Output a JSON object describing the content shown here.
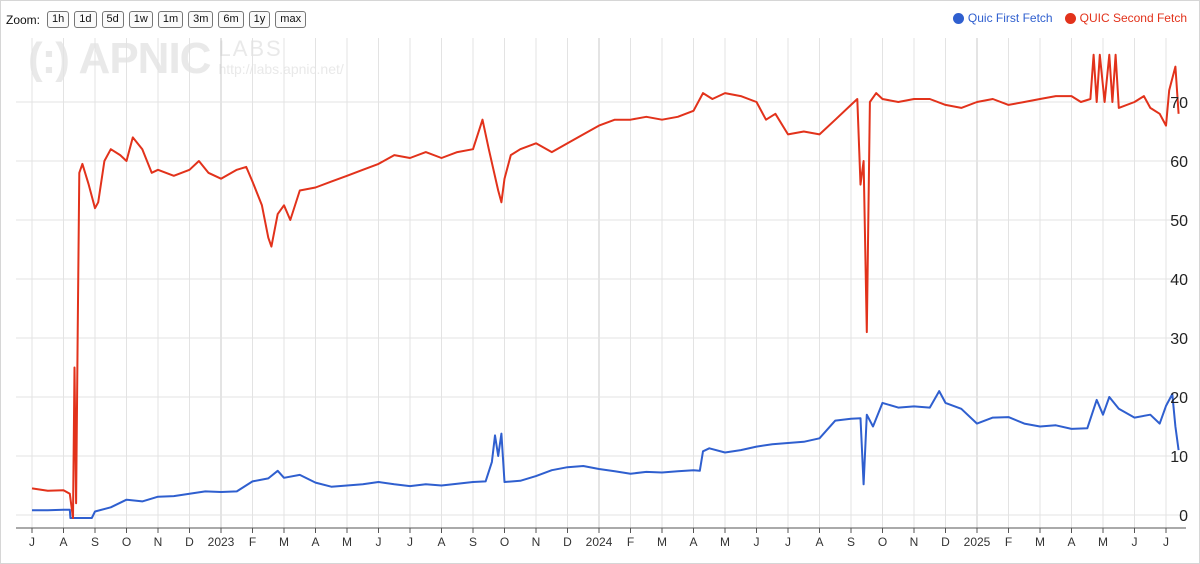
{
  "zoom": {
    "label": "Zoom:",
    "buttons": [
      "1h",
      "1d",
      "5d",
      "1w",
      "1m",
      "3m",
      "6m",
      "1y",
      "max"
    ]
  },
  "watermark": {
    "logo": "(:) APNIC",
    "labs": "LABS",
    "url": "http://labs.apnic.net/"
  },
  "colors": {
    "first": "#2f5fcf",
    "second": "#e2321b",
    "grid": "#e3e3e3",
    "axis": "#555555"
  },
  "chart_data": {
    "type": "line",
    "title": "",
    "xlabel": "",
    "ylabel": "",
    "x_ticks": [
      "J",
      "A",
      "S",
      "O",
      "N",
      "D",
      "2023",
      "F",
      "M",
      "A",
      "M",
      "J",
      "J",
      "A",
      "S",
      "O",
      "N",
      "D",
      "2024",
      "F",
      "M",
      "A",
      "M",
      "J",
      "J",
      "A",
      "S",
      "O",
      "N",
      "D",
      "2025",
      "F",
      "M",
      "A",
      "M",
      "J",
      "J"
    ],
    "y_ticks": [
      0,
      10,
      20,
      30,
      40,
      50,
      60,
      70
    ],
    "ylim": [
      -1,
      78
    ],
    "xlim": [
      0,
      36.6
    ],
    "legend_position": "top-right",
    "grid": true,
    "series": [
      {
        "name": "Quic First Fetch",
        "color": "#2f5fcf",
        "points": [
          [
            0,
            0.8
          ],
          [
            0.5,
            0.8
          ],
          [
            1,
            0.9
          ],
          [
            1.2,
            0.9
          ],
          [
            1.22,
            -0.5
          ],
          [
            1.9,
            -0.5
          ],
          [
            2,
            0.6
          ],
          [
            2.5,
            1.3
          ],
          [
            3,
            2.6
          ],
          [
            3.5,
            2.3
          ],
          [
            4,
            3.1
          ],
          [
            4.5,
            3.2
          ],
          [
            5,
            3.6
          ],
          [
            5.5,
            4.0
          ],
          [
            6,
            3.9
          ],
          [
            6.5,
            4.0
          ],
          [
            7,
            5.7
          ],
          [
            7.5,
            6.2
          ],
          [
            7.8,
            7.5
          ],
          [
            8,
            6.3
          ],
          [
            8.5,
            6.8
          ],
          [
            9,
            5.5
          ],
          [
            9.5,
            4.8
          ],
          [
            10,
            5.0
          ],
          [
            10.5,
            5.2
          ],
          [
            11,
            5.6
          ],
          [
            11.5,
            5.2
          ],
          [
            12,
            4.9
          ],
          [
            12.5,
            5.2
          ],
          [
            13,
            5.0
          ],
          [
            13.5,
            5.3
          ],
          [
            14,
            5.6
          ],
          [
            14.4,
            5.7
          ],
          [
            14.6,
            9
          ],
          [
            14.7,
            13.5
          ],
          [
            14.8,
            10
          ],
          [
            14.9,
            13.8
          ],
          [
            15,
            5.6
          ],
          [
            15.5,
            5.8
          ],
          [
            16,
            6.6
          ],
          [
            16.5,
            7.6
          ],
          [
            17,
            8.1
          ],
          [
            17.5,
            8.3
          ],
          [
            18,
            7.8
          ],
          [
            18.5,
            7.4
          ],
          [
            19,
            7.0
          ],
          [
            19.5,
            7.3
          ],
          [
            20,
            7.2
          ],
          [
            20.5,
            7.4
          ],
          [
            21,
            7.6
          ],
          [
            21.2,
            7.5
          ],
          [
            21.3,
            10.8
          ],
          [
            21.5,
            11.3
          ],
          [
            22,
            10.6
          ],
          [
            22.5,
            11.0
          ],
          [
            23,
            11.6
          ],
          [
            23.5,
            12.0
          ],
          [
            24,
            12.2
          ],
          [
            24.5,
            12.4
          ],
          [
            25,
            13.0
          ],
          [
            25.5,
            16.0
          ],
          [
            26,
            16.3
          ],
          [
            26.3,
            16.4
          ],
          [
            26.4,
            5.2
          ],
          [
            26.5,
            17.0
          ],
          [
            26.7,
            15.0
          ],
          [
            27,
            19.0
          ],
          [
            27.5,
            18.2
          ],
          [
            28,
            18.4
          ],
          [
            28.5,
            18.2
          ],
          [
            28.8,
            21.0
          ],
          [
            29,
            19.0
          ],
          [
            29.5,
            18.0
          ],
          [
            30,
            15.5
          ],
          [
            30.5,
            16.5
          ],
          [
            31,
            16.6
          ],
          [
            31.5,
            15.5
          ],
          [
            32,
            15.0
          ],
          [
            32.5,
            15.2
          ],
          [
            33,
            14.6
          ],
          [
            33.5,
            14.7
          ],
          [
            33.8,
            19.5
          ],
          [
            34,
            17.0
          ],
          [
            34.2,
            20.0
          ],
          [
            34.5,
            18.0
          ],
          [
            35,
            16.5
          ],
          [
            35.5,
            17.0
          ],
          [
            35.8,
            15.5
          ],
          [
            36,
            18.5
          ],
          [
            36.2,
            20.5
          ],
          [
            36.3,
            15.0
          ],
          [
            36.4,
            11.0
          ]
        ]
      },
      {
        "name": "QUIC Second Fetch",
        "color": "#e2321b",
        "points": [
          [
            0,
            4.5
          ],
          [
            0.5,
            4.1
          ],
          [
            1,
            4.2
          ],
          [
            1.2,
            3.6
          ],
          [
            1.3,
            -0.5
          ],
          [
            1.35,
            25
          ],
          [
            1.4,
            2
          ],
          [
            1.45,
            31
          ],
          [
            1.5,
            58
          ],
          [
            1.6,
            59.5
          ],
          [
            1.8,
            56
          ],
          [
            2,
            52
          ],
          [
            2.1,
            53
          ],
          [
            2.3,
            60
          ],
          [
            2.5,
            62
          ],
          [
            2.8,
            61
          ],
          [
            3,
            60
          ],
          [
            3.2,
            64
          ],
          [
            3.5,
            62
          ],
          [
            3.8,
            58
          ],
          [
            4,
            58.5
          ],
          [
            4.5,
            57.5
          ],
          [
            5,
            58.5
          ],
          [
            5.3,
            60
          ],
          [
            5.6,
            58
          ],
          [
            6,
            57
          ],
          [
            6.5,
            58.5
          ],
          [
            6.8,
            59
          ],
          [
            7,
            56.5
          ],
          [
            7.3,
            52.5
          ],
          [
            7.5,
            47
          ],
          [
            7.6,
            45.5
          ],
          [
            7.8,
            51
          ],
          [
            8,
            52.5
          ],
          [
            8.2,
            50
          ],
          [
            8.5,
            55
          ],
          [
            9,
            55.5
          ],
          [
            9.5,
            56.5
          ],
          [
            10,
            57.5
          ],
          [
            10.5,
            58.5
          ],
          [
            11,
            59.5
          ],
          [
            11.5,
            61
          ],
          [
            12,
            60.5
          ],
          [
            12.5,
            61.5
          ],
          [
            13,
            60.5
          ],
          [
            13.5,
            61.5
          ],
          [
            14,
            62
          ],
          [
            14.3,
            67
          ],
          [
            14.5,
            62
          ],
          [
            14.8,
            55
          ],
          [
            14.9,
            53
          ],
          [
            15,
            57
          ],
          [
            15.2,
            61
          ],
          [
            15.5,
            62
          ],
          [
            16,
            63
          ],
          [
            16.5,
            61.5
          ],
          [
            17,
            63
          ],
          [
            17.5,
            64.5
          ],
          [
            18,
            66
          ],
          [
            18.5,
            67
          ],
          [
            19,
            67
          ],
          [
            19.5,
            67.5
          ],
          [
            20,
            67
          ],
          [
            20.5,
            67.5
          ],
          [
            21,
            68.5
          ],
          [
            21.3,
            71.5
          ],
          [
            21.6,
            70.5
          ],
          [
            22,
            71.5
          ],
          [
            22.5,
            71
          ],
          [
            23,
            70
          ],
          [
            23.3,
            67
          ],
          [
            23.6,
            68
          ],
          [
            24,
            64.5
          ],
          [
            24.5,
            65
          ],
          [
            25,
            64.5
          ],
          [
            25.5,
            67
          ],
          [
            26,
            69.5
          ],
          [
            26.2,
            70.5
          ],
          [
            26.3,
            56
          ],
          [
            26.4,
            60
          ],
          [
            26.5,
            31
          ],
          [
            26.6,
            70
          ],
          [
            26.8,
            71.5
          ],
          [
            27,
            70.5
          ],
          [
            27.5,
            70
          ],
          [
            28,
            70.5
          ],
          [
            28.5,
            70.5
          ],
          [
            29,
            69.5
          ],
          [
            29.5,
            69
          ],
          [
            30,
            70
          ],
          [
            30.5,
            70.5
          ],
          [
            31,
            69.5
          ],
          [
            31.5,
            70
          ],
          [
            32,
            70.5
          ],
          [
            32.5,
            71
          ],
          [
            33,
            71
          ],
          [
            33.3,
            70
          ],
          [
            33.6,
            70.5
          ],
          [
            33.7,
            78
          ],
          [
            33.8,
            70
          ],
          [
            33.9,
            78
          ],
          [
            34.05,
            70
          ],
          [
            34.2,
            78
          ],
          [
            34.3,
            70
          ],
          [
            34.4,
            78
          ],
          [
            34.5,
            69
          ],
          [
            35,
            70
          ],
          [
            35.3,
            71
          ],
          [
            35.5,
            69
          ],
          [
            35.8,
            68
          ],
          [
            36,
            66
          ],
          [
            36.1,
            72
          ],
          [
            36.3,
            76
          ],
          [
            36.4,
            68
          ]
        ]
      }
    ]
  }
}
